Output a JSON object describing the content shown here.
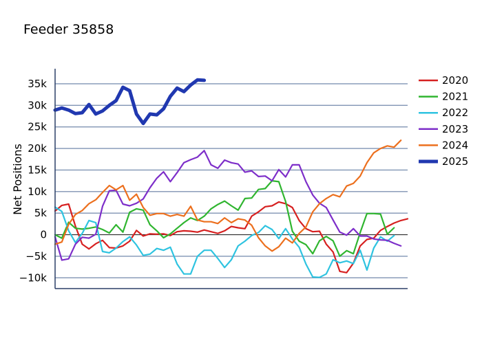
{
  "chart_data": {
    "type": "line",
    "title": "Feeder 35858",
    "xlabel": "",
    "ylabel": "Net Positions",
    "ylim": [
      -12500,
      38500
    ],
    "yticks": [
      35000,
      30000,
      25000,
      20000,
      15000,
      10000,
      5000,
      0,
      -5000,
      -10000
    ],
    "ytick_labels": [
      "35k",
      "30k",
      "25k",
      "20k",
      "15k",
      "10k",
      "5k",
      "0",
      "−5k",
      "−10k"
    ],
    "x_range": [
      1,
      53
    ],
    "grid": true,
    "legend_position": "right",
    "series": [
      {
        "name": "2020",
        "color": "#d62020",
        "values": [
          5500,
          6800,
          7100,
          2000,
          -2200,
          -3300,
          -2100,
          -1300,
          -3000,
          -3100,
          -2600,
          -1500,
          1000,
          -300,
          200,
          100,
          200,
          -200,
          700,
          900,
          800,
          600,
          1100,
          700,
          300,
          900,
          1900,
          1600,
          1400,
          4300,
          5300,
          6500,
          6700,
          7600,
          7200,
          6300,
          3300,
          1400,
          700,
          800,
          -2200,
          -4000,
          -8500,
          -8800,
          -6600,
          -2600,
          -1100,
          -800,
          1000,
          1900,
          2700,
          3300,
          3700
        ]
      },
      {
        "name": "2021",
        "color": "#2fb52f",
        "values": [
          0,
          -800,
          2900,
          1500,
          1300,
          1500,
          1800,
          1200,
          400,
          2300,
          600,
          5200,
          6000,
          5700,
          2300,
          900,
          -700,
          200,
          1500,
          2800,
          3900,
          3300,
          4300,
          6000,
          7000,
          7800,
          6700,
          5700,
          8400,
          8500,
          10500,
          10700,
          12500,
          12300,
          7700,
          800,
          -1500,
          -2300,
          -4400,
          -1400,
          -400,
          -1400,
          -5000,
          -3700,
          -4400,
          500,
          4900,
          4900,
          4800,
          100,
          1600
        ]
      },
      {
        "name": "2022",
        "color": "#2ec3e0",
        "values": [
          6400,
          5400,
          900,
          -1800,
          300,
          3300,
          2800,
          -3900,
          -4200,
          -3100,
          -1600,
          -500,
          -2400,
          -4800,
          -4500,
          -3200,
          -3600,
          -2900,
          -6800,
          -9100,
          -9100,
          -5000,
          -3600,
          -3600,
          -5500,
          -7600,
          -5800,
          -2600,
          -1500,
          -200,
          500,
          2100,
          1200,
          -900,
          1400,
          -1000,
          -2900,
          -6800,
          -9800,
          -9900,
          -9100,
          -5800,
          -6500,
          -6100,
          -6700,
          -3600,
          -8200,
          -3100,
          -500,
          -1500,
          -200
        ]
      },
      {
        "name": "2023",
        "color": "#7d2ec9",
        "values": [
          -500,
          -5900,
          -5600,
          -2200,
          -600,
          -800,
          100,
          6600,
          10200,
          10300,
          7100,
          6700,
          7300,
          8300,
          10900,
          13100,
          14600,
          12300,
          14400,
          16700,
          17400,
          18000,
          19500,
          16200,
          15400,
          17300,
          16700,
          16400,
          14500,
          14800,
          13500,
          13600,
          12500,
          15100,
          13400,
          16200,
          16200,
          12300,
          9200,
          7300,
          6300,
          3400,
          600,
          -100,
          1400,
          -300,
          -300,
          -1000,
          -1200,
          -1300,
          -2000,
          -2600
        ]
      },
      {
        "name": "2024",
        "color": "#ec6f1d",
        "values": [
          -2200,
          -1700,
          2400,
          4700,
          5600,
          7200,
          8100,
          9800,
          11400,
          10400,
          11400,
          8000,
          9400,
          6300,
          4500,
          4900,
          4900,
          4300,
          4700,
          4300,
          6600,
          3400,
          3000,
          3000,
          2600,
          3900,
          2800,
          3700,
          3400,
          2200,
          -700,
          -2600,
          -3800,
          -2800,
          -800,
          -1900,
          300,
          1800,
          5300,
          7200,
          8400,
          9300,
          8800,
          11300,
          11900,
          13600,
          16700,
          19000,
          20000,
          20600,
          20300,
          21900
        ]
      },
      {
        "name": "2025",
        "color": "#2038b0",
        "values": [
          28900,
          29400,
          28900,
          28100,
          28300,
          30200,
          28000,
          28700,
          30000,
          31100,
          34200,
          33400,
          28000,
          25800,
          28000,
          27800,
          29200,
          32100,
          34000,
          33200,
          34700,
          35900,
          35800
        ]
      }
    ]
  }
}
